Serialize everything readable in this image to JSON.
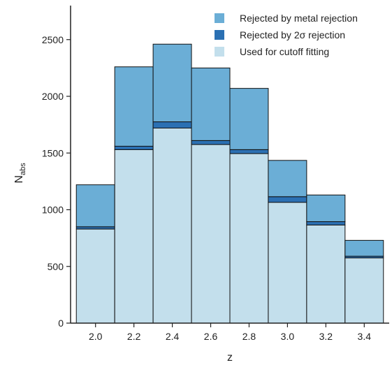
{
  "chart_data": {
    "type": "bar",
    "stacked": true,
    "categories": [
      "2.0",
      "2.2",
      "2.4",
      "2.6",
      "2.8",
      "3.0",
      "3.2",
      "3.4"
    ],
    "bin_centers": [
      2.0,
      2.2,
      2.4,
      2.6,
      2.8,
      3.0,
      3.2,
      3.4
    ],
    "xticks": [
      "2.0",
      "2.2",
      "2.4",
      "2.6",
      "2.8",
      "3.0",
      "3.2",
      "3.4"
    ],
    "yticks": [
      0,
      500,
      1000,
      1500,
      2000,
      2500
    ],
    "ylim": [
      0,
      2800
    ],
    "xlabel": "z",
    "ylabel": "N",
    "ylabel_sub": "abs",
    "legend_position": "top-right",
    "grid": false,
    "series": [
      {
        "name": "Used for cutoff fitting",
        "color": "#c3dfec",
        "values": [
          830,
          1530,
          1720,
          1575,
          1495,
          1065,
          865,
          575
        ]
      },
      {
        "name": "Rejected by 2σ rejection",
        "color": "#2b70b3",
        "values": [
          20,
          30,
          55,
          35,
          35,
          50,
          30,
          15
        ]
      },
      {
        "name": "Rejected by metal rejection",
        "color": "#6baed6",
        "values": [
          370,
          700,
          685,
          640,
          540,
          320,
          235,
          140
        ]
      }
    ],
    "totals": [
      1220,
      2260,
      2460,
      2250,
      2070,
      1435,
      1130,
      730
    ],
    "legend_order": [
      "Rejected by metal rejection",
      "Rejected by 2σ rejection",
      "Used for cutoff fitting"
    ]
  }
}
